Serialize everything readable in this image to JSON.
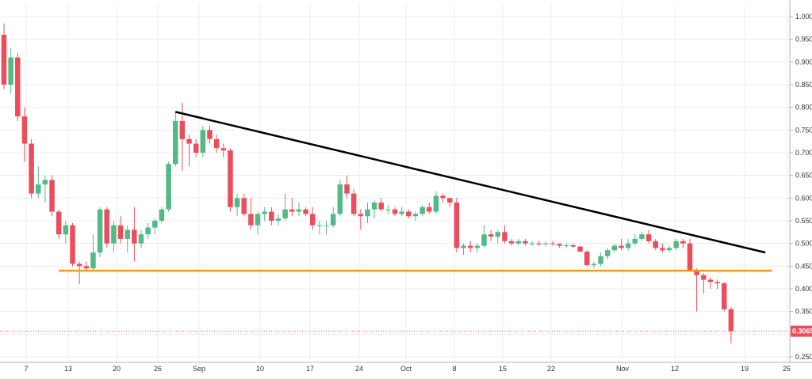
{
  "chart_data": {
    "type": "candlestick",
    "title": "",
    "xlabel": "",
    "ylabel": "",
    "ylim": [
      0.25,
      1.0
    ],
    "x_ticks": [
      "7",
      "13",
      "20",
      "26",
      "Sep",
      "10",
      "17",
      "24",
      "Oct",
      "8",
      "15",
      "22",
      "Nov",
      "12",
      "19",
      "25"
    ],
    "y_ticks": [
      "1.0000",
      "0.9500",
      "0.9000",
      "0.8500",
      "0.8000",
      "0.7500",
      "0.7000",
      "0.6500",
      "0.6000",
      "0.5500",
      "0.5000",
      "0.4500",
      "0.4000",
      "0.3500",
      "0.3000",
      "0.2500"
    ],
    "current_price": 0.3065,
    "current_price_label": "0.3065",
    "grid": true,
    "colors": {
      "up": "#53b987",
      "down": "#eb4d5c",
      "trendline": "#000000",
      "support": "#ff9800",
      "price_tag": "#eb4d5c"
    },
    "trendline": {
      "start": {
        "date": "Aug 27",
        "price": 0.79
      },
      "end": {
        "date": "Nov 21",
        "price": 0.48
      }
    },
    "support_line": {
      "start": {
        "date": "Aug 10"
      },
      "end": {
        "date": "Nov 22"
      },
      "price": 0.44
    },
    "candles": [
      {
        "date": "Aug 2",
        "o": 0.96,
        "h": 0.985,
        "l": 0.84,
        "c": 0.85
      },
      {
        "date": "Aug 3",
        "o": 0.85,
        "h": 0.93,
        "l": 0.83,
        "c": 0.91
      },
      {
        "date": "Aug 4",
        "o": 0.91,
        "h": 0.92,
        "l": 0.77,
        "c": 0.78
      },
      {
        "date": "Aug 5",
        "o": 0.78,
        "h": 0.8,
        "l": 0.68,
        "c": 0.72
      },
      {
        "date": "Aug 6",
        "o": 0.72,
        "h": 0.73,
        "l": 0.6,
        "c": 0.61
      },
      {
        "date": "Aug 7",
        "o": 0.61,
        "h": 0.67,
        "l": 0.6,
        "c": 0.63
      },
      {
        "date": "Aug 8",
        "o": 0.63,
        "h": 0.65,
        "l": 0.59,
        "c": 0.64
      },
      {
        "date": "Aug 9",
        "o": 0.64,
        "h": 0.65,
        "l": 0.56,
        "c": 0.57
      },
      {
        "date": "Aug 10",
        "o": 0.57,
        "h": 0.575,
        "l": 0.51,
        "c": 0.52
      },
      {
        "date": "Aug 11",
        "o": 0.52,
        "h": 0.55,
        "l": 0.5,
        "c": 0.54
      },
      {
        "date": "Aug 12",
        "o": 0.54,
        "h": 0.545,
        "l": 0.45,
        "c": 0.455
      },
      {
        "date": "Aug 13",
        "o": 0.455,
        "h": 0.46,
        "l": 0.41,
        "c": 0.45
      },
      {
        "date": "Aug 14",
        "o": 0.45,
        "h": 0.46,
        "l": 0.44,
        "c": 0.445
      },
      {
        "date": "Aug 15",
        "o": 0.445,
        "h": 0.52,
        "l": 0.44,
        "c": 0.48
      },
      {
        "date": "Aug 16",
        "o": 0.48,
        "h": 0.58,
        "l": 0.47,
        "c": 0.575
      },
      {
        "date": "Aug 17",
        "o": 0.575,
        "h": 0.58,
        "l": 0.49,
        "c": 0.5
      },
      {
        "date": "Aug 18",
        "o": 0.5,
        "h": 0.55,
        "l": 0.48,
        "c": 0.54
      },
      {
        "date": "Aug 19",
        "o": 0.54,
        "h": 0.56,
        "l": 0.5,
        "c": 0.51
      },
      {
        "date": "Aug 20",
        "o": 0.51,
        "h": 0.54,
        "l": 0.48,
        "c": 0.53
      },
      {
        "date": "Aug 21",
        "o": 0.53,
        "h": 0.58,
        "l": 0.46,
        "c": 0.5
      },
      {
        "date": "Aug 22",
        "o": 0.5,
        "h": 0.53,
        "l": 0.49,
        "c": 0.52
      },
      {
        "date": "Aug 23",
        "o": 0.52,
        "h": 0.545,
        "l": 0.51,
        "c": 0.535
      },
      {
        "date": "Aug 24",
        "o": 0.535,
        "h": 0.555,
        "l": 0.52,
        "c": 0.55
      },
      {
        "date": "Aug 25",
        "o": 0.55,
        "h": 0.58,
        "l": 0.545,
        "c": 0.575
      },
      {
        "date": "Aug 26",
        "o": 0.575,
        "h": 0.68,
        "l": 0.57,
        "c": 0.675
      },
      {
        "date": "Aug 27",
        "o": 0.675,
        "h": 0.79,
        "l": 0.67,
        "c": 0.77
      },
      {
        "date": "Aug 28",
        "o": 0.77,
        "h": 0.81,
        "l": 0.66,
        "c": 0.73
      },
      {
        "date": "Aug 29",
        "o": 0.73,
        "h": 0.74,
        "l": 0.67,
        "c": 0.72
      },
      {
        "date": "Aug 30",
        "o": 0.72,
        "h": 0.73,
        "l": 0.69,
        "c": 0.7
      },
      {
        "date": "Aug 31",
        "o": 0.7,
        "h": 0.76,
        "l": 0.69,
        "c": 0.75
      },
      {
        "date": "Sep 1",
        "o": 0.75,
        "h": 0.76,
        "l": 0.72,
        "c": 0.73
      },
      {
        "date": "Sep 2",
        "o": 0.73,
        "h": 0.74,
        "l": 0.7,
        "c": 0.71
      },
      {
        "date": "Sep 3",
        "o": 0.71,
        "h": 0.72,
        "l": 0.69,
        "c": 0.705
      },
      {
        "date": "Sep 4",
        "o": 0.705,
        "h": 0.71,
        "l": 0.57,
        "c": 0.58
      },
      {
        "date": "Sep 5",
        "o": 0.58,
        "h": 0.61,
        "l": 0.56,
        "c": 0.6
      },
      {
        "date": "Sep 6",
        "o": 0.6,
        "h": 0.61,
        "l": 0.56,
        "c": 0.565
      },
      {
        "date": "Sep 7",
        "o": 0.565,
        "h": 0.6,
        "l": 0.53,
        "c": 0.54
      },
      {
        "date": "Sep 8",
        "o": 0.54,
        "h": 0.57,
        "l": 0.52,
        "c": 0.565
      },
      {
        "date": "Sep 9",
        "o": 0.565,
        "h": 0.58,
        "l": 0.55,
        "c": 0.57
      },
      {
        "date": "Sep 10",
        "o": 0.57,
        "h": 0.58,
        "l": 0.54,
        "c": 0.55
      },
      {
        "date": "Sep 11",
        "o": 0.55,
        "h": 0.565,
        "l": 0.54,
        "c": 0.555
      },
      {
        "date": "Sep 12",
        "o": 0.555,
        "h": 0.61,
        "l": 0.55,
        "c": 0.575
      },
      {
        "date": "Sep 13",
        "o": 0.575,
        "h": 0.6,
        "l": 0.56,
        "c": 0.57
      },
      {
        "date": "Sep 14",
        "o": 0.57,
        "h": 0.59,
        "l": 0.56,
        "c": 0.575
      },
      {
        "date": "Sep 15",
        "o": 0.575,
        "h": 0.58,
        "l": 0.56,
        "c": 0.565
      },
      {
        "date": "Sep 16",
        "o": 0.565,
        "h": 0.58,
        "l": 0.53,
        "c": 0.54
      },
      {
        "date": "Sep 17",
        "o": 0.54,
        "h": 0.55,
        "l": 0.52,
        "c": 0.54
      },
      {
        "date": "Sep 18",
        "o": 0.54,
        "h": 0.55,
        "l": 0.52,
        "c": 0.54
      },
      {
        "date": "Sep 19",
        "o": 0.54,
        "h": 0.58,
        "l": 0.535,
        "c": 0.565
      },
      {
        "date": "Sep 20",
        "o": 0.565,
        "h": 0.64,
        "l": 0.56,
        "c": 0.63
      },
      {
        "date": "Sep 21",
        "o": 0.63,
        "h": 0.65,
        "l": 0.6,
        "c": 0.61
      },
      {
        "date": "Sep 22",
        "o": 0.61,
        "h": 0.62,
        "l": 0.56,
        "c": 0.565
      },
      {
        "date": "Sep 23",
        "o": 0.565,
        "h": 0.575,
        "l": 0.53,
        "c": 0.56
      },
      {
        "date": "Sep 24",
        "o": 0.56,
        "h": 0.59,
        "l": 0.545,
        "c": 0.575
      },
      {
        "date": "Sep 25",
        "o": 0.575,
        "h": 0.595,
        "l": 0.555,
        "c": 0.59
      },
      {
        "date": "Sep 26",
        "o": 0.59,
        "h": 0.6,
        "l": 0.57,
        "c": 0.575
      },
      {
        "date": "Sep 27",
        "o": 0.575,
        "h": 0.585,
        "l": 0.565,
        "c": 0.575
      },
      {
        "date": "Sep 28",
        "o": 0.575,
        "h": 0.58,
        "l": 0.56,
        "c": 0.565
      },
      {
        "date": "Sep 29",
        "o": 0.565,
        "h": 0.58,
        "l": 0.56,
        "c": 0.57
      },
      {
        "date": "Sep 30",
        "o": 0.57,
        "h": 0.575,
        "l": 0.555,
        "c": 0.56
      },
      {
        "date": "Oct 1",
        "o": 0.56,
        "h": 0.57,
        "l": 0.55,
        "c": 0.565
      },
      {
        "date": "Oct 2",
        "o": 0.565,
        "h": 0.585,
        "l": 0.56,
        "c": 0.58
      },
      {
        "date": "Oct 3",
        "o": 0.58,
        "h": 0.59,
        "l": 0.565,
        "c": 0.57
      },
      {
        "date": "Oct 4",
        "o": 0.57,
        "h": 0.615,
        "l": 0.565,
        "c": 0.605
      },
      {
        "date": "Oct 5",
        "o": 0.605,
        "h": 0.61,
        "l": 0.59,
        "c": 0.6
      },
      {
        "date": "Oct 6",
        "o": 0.6,
        "h": 0.6,
        "l": 0.58,
        "c": 0.59
      },
      {
        "date": "Oct 7",
        "o": 0.59,
        "h": 0.6,
        "l": 0.48,
        "c": 0.49
      },
      {
        "date": "Oct 8",
        "o": 0.49,
        "h": 0.5,
        "l": 0.475,
        "c": 0.495
      },
      {
        "date": "Oct 9",
        "o": 0.495,
        "h": 0.505,
        "l": 0.48,
        "c": 0.49
      },
      {
        "date": "Oct 10",
        "o": 0.49,
        "h": 0.5,
        "l": 0.48,
        "c": 0.495
      },
      {
        "date": "Oct 11",
        "o": 0.495,
        "h": 0.54,
        "l": 0.49,
        "c": 0.52
      },
      {
        "date": "Oct 12",
        "o": 0.52,
        "h": 0.53,
        "l": 0.505,
        "c": 0.515
      },
      {
        "date": "Oct 13",
        "o": 0.515,
        "h": 0.53,
        "l": 0.5,
        "c": 0.525
      },
      {
        "date": "Oct 14",
        "o": 0.525,
        "h": 0.54,
        "l": 0.5,
        "c": 0.505
      },
      {
        "date": "Oct 15",
        "o": 0.505,
        "h": 0.51,
        "l": 0.495,
        "c": 0.5
      },
      {
        "date": "Oct 16",
        "o": 0.5,
        "h": 0.51,
        "l": 0.495,
        "c": 0.505
      },
      {
        "date": "Oct 17",
        "o": 0.505,
        "h": 0.51,
        "l": 0.495,
        "c": 0.5
      },
      {
        "date": "Oct 18",
        "o": 0.5,
        "h": 0.505,
        "l": 0.495,
        "c": 0.5
      },
      {
        "date": "Oct 19",
        "o": 0.5,
        "h": 0.505,
        "l": 0.495,
        "c": 0.498
      },
      {
        "date": "Oct 20",
        "o": 0.498,
        "h": 0.505,
        "l": 0.495,
        "c": 0.5
      },
      {
        "date": "Oct 21",
        "o": 0.5,
        "h": 0.505,
        "l": 0.495,
        "c": 0.499
      },
      {
        "date": "Oct 22",
        "o": 0.499,
        "h": 0.5,
        "l": 0.49,
        "c": 0.495
      },
      {
        "date": "Oct 23",
        "o": 0.495,
        "h": 0.5,
        "l": 0.49,
        "c": 0.496
      },
      {
        "date": "Oct 24",
        "o": 0.496,
        "h": 0.5,
        "l": 0.49,
        "c": 0.493
      },
      {
        "date": "Oct 25",
        "o": 0.493,
        "h": 0.495,
        "l": 0.48,
        "c": 0.482
      },
      {
        "date": "Oct 26",
        "o": 0.482,
        "h": 0.485,
        "l": 0.45,
        "c": 0.452
      },
      {
        "date": "Oct 27",
        "o": 0.452,
        "h": 0.46,
        "l": 0.445,
        "c": 0.455
      },
      {
        "date": "Oct 28",
        "o": 0.455,
        "h": 0.48,
        "l": 0.45,
        "c": 0.472
      },
      {
        "date": "Oct 29",
        "o": 0.472,
        "h": 0.49,
        "l": 0.465,
        "c": 0.485
      },
      {
        "date": "Oct 30",
        "o": 0.485,
        "h": 0.5,
        "l": 0.48,
        "c": 0.495
      },
      {
        "date": "Oct 31",
        "o": 0.495,
        "h": 0.51,
        "l": 0.485,
        "c": 0.49
      },
      {
        "date": "Nov 1",
        "o": 0.49,
        "h": 0.51,
        "l": 0.485,
        "c": 0.5
      },
      {
        "date": "Nov 2",
        "o": 0.5,
        "h": 0.52,
        "l": 0.495,
        "c": 0.51
      },
      {
        "date": "Nov 3",
        "o": 0.51,
        "h": 0.525,
        "l": 0.505,
        "c": 0.52
      },
      {
        "date": "Nov 4",
        "o": 0.52,
        "h": 0.53,
        "l": 0.5,
        "c": 0.505
      },
      {
        "date": "Nov 5",
        "o": 0.505,
        "h": 0.51,
        "l": 0.485,
        "c": 0.49
      },
      {
        "date": "Nov 6",
        "o": 0.49,
        "h": 0.5,
        "l": 0.48,
        "c": 0.485
      },
      {
        "date": "Nov 7",
        "o": 0.485,
        "h": 0.495,
        "l": 0.48,
        "c": 0.49
      },
      {
        "date": "Nov 8",
        "o": 0.49,
        "h": 0.51,
        "l": 0.485,
        "c": 0.505
      },
      {
        "date": "Nov 9",
        "o": 0.505,
        "h": 0.51,
        "l": 0.49,
        "c": 0.5
      },
      {
        "date": "Nov 10",
        "o": 0.5,
        "h": 0.51,
        "l": 0.44,
        "c": 0.44
      },
      {
        "date": "Nov 11",
        "o": 0.44,
        "h": 0.445,
        "l": 0.35,
        "c": 0.43
      },
      {
        "date": "Nov 12",
        "o": 0.43,
        "h": 0.435,
        "l": 0.39,
        "c": 0.42
      },
      {
        "date": "Nov 13",
        "o": 0.42,
        "h": 0.425,
        "l": 0.4,
        "c": 0.415
      },
      {
        "date": "Nov 14",
        "o": 0.415,
        "h": 0.42,
        "l": 0.4,
        "c": 0.412
      },
      {
        "date": "Nov 15",
        "o": 0.412,
        "h": 0.415,
        "l": 0.35,
        "c": 0.355
      },
      {
        "date": "Nov 16",
        "o": 0.355,
        "h": 0.36,
        "l": 0.28,
        "c": 0.3065
      }
    ]
  }
}
